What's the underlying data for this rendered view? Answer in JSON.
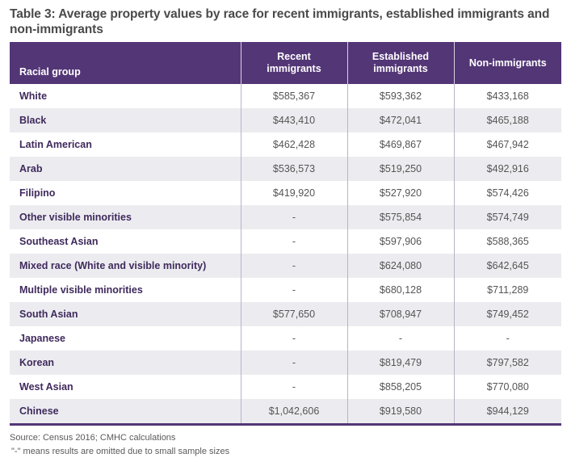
{
  "title": "Table 3: Average property values by race for recent immigrants, established immigrants and non-immigrants",
  "table": {
    "headers": [
      "Racial group",
      "Recent immigrants",
      "Established immigrants",
      "Non-immigrants"
    ],
    "rows": [
      [
        "White",
        "$585,367",
        "$593,362",
        "$433,168"
      ],
      [
        "Black",
        "$443,410",
        "$472,041",
        "$465,188"
      ],
      [
        "Latin American",
        "$462,428",
        "$469,867",
        "$467,942"
      ],
      [
        "Arab",
        "$536,573",
        "$519,250",
        "$492,916"
      ],
      [
        "Filipino",
        "$419,920",
        "$527,920",
        "$574,426"
      ],
      [
        "Other visible minorities",
        "-",
        "$575,854",
        "$574,749"
      ],
      [
        "Southeast Asian",
        "-",
        "$597,906",
        "$588,365"
      ],
      [
        "Mixed race (White and visible minority)",
        "-",
        "$624,080",
        "$642,645"
      ],
      [
        "Multiple visible minorities",
        "-",
        "$680,128",
        "$711,289"
      ],
      [
        "South Asian",
        "$577,650",
        "$708,947",
        "$749,452"
      ],
      [
        "Japanese",
        "-",
        "-",
        "-"
      ],
      [
        "Korean",
        "-",
        "$819,479",
        "$797,582"
      ],
      [
        "West Asian",
        "-",
        "$858,205",
        "$770,080"
      ],
      [
        "Chinese",
        "$1,042,606",
        "$919,580",
        "$944,129"
      ]
    ]
  },
  "notes": {
    "source": "Source: Census 2016; CMHC calculations",
    "omission": "\"-\" means results are omitted due to small sample sizes"
  },
  "colors": {
    "header_bg": "#533676",
    "label_text": "#3f2a5c",
    "alt_row_bg": "#ececf0"
  }
}
